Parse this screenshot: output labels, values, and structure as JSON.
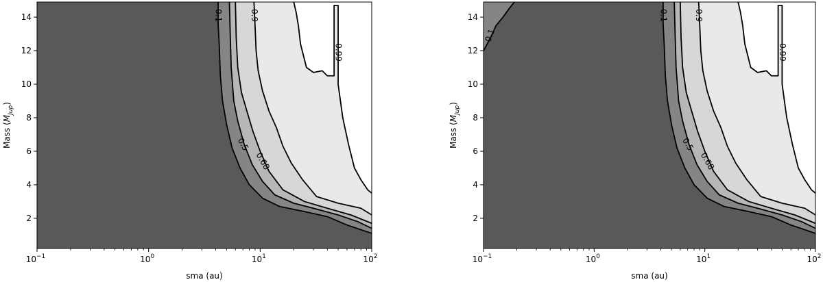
{
  "chart_data": [
    {
      "type": "contour",
      "xlabel": "sma (au)",
      "ylabel": "Mass (",
      "ylabel_math": "M",
      "ylabel_sub": "Jup",
      "ylabel_close": ")",
      "xscale": "log",
      "xlim": [
        0.1,
        100
      ],
      "ylim": [
        0.2,
        14.9
      ],
      "x_ticks": [
        {
          "base": "10",
          "exp": "−1"
        },
        {
          "base": "10",
          "exp": "0"
        },
        {
          "base": "10",
          "exp": "1"
        },
        {
          "base": "10",
          "exp": "2"
        }
      ],
      "y_ticks": [
        "2",
        "4",
        "6",
        "8",
        "10",
        "12",
        "14"
      ],
      "y_tick_values": [
        2,
        4,
        6,
        8,
        10,
        12,
        14
      ],
      "levels": [
        "0.1",
        "0.5",
        "0.68",
        "0.9",
        "0.99"
      ],
      "fill_colors": [
        "#595959",
        "#858585",
        "#b7b7b7",
        "#d7d7d7",
        "#e9e9e9",
        "#ffffff"
      ],
      "contours": [
        {
          "level": "0.1",
          "points": [
            [
              4.2,
              14.9
            ],
            [
              4.2,
              13.6
            ],
            [
              4.3,
              12.3
            ],
            [
              4.4,
              10.5
            ],
            [
              4.6,
              9.0
            ],
            [
              5.0,
              7.6
            ],
            [
              5.6,
              6.2
            ],
            [
              6.6,
              5.0
            ],
            [
              8.0,
              4.0
            ],
            [
              10.5,
              3.2
            ],
            [
              15,
              2.7
            ],
            [
              25,
              2.4
            ],
            [
              40,
              2.1
            ],
            [
              60,
              1.6
            ],
            [
              100,
              1.1
            ]
          ]
        },
        {
          "level": "0.5",
          "points": [
            [
              5.3,
              14.9
            ],
            [
              5.4,
              12.8
            ],
            [
              5.5,
              11.0
            ],
            [
              5.8,
              9.0
            ],
            [
              6.3,
              7.8
            ],
            [
              7.2,
              6.4
            ],
            [
              8.5,
              5.2
            ],
            [
              10.5,
              4.2
            ],
            [
              13.5,
              3.4
            ],
            [
              20,
              2.9
            ],
            [
              30,
              2.6
            ],
            [
              50,
              2.2
            ],
            [
              75,
              1.8
            ],
            [
              100,
              1.4
            ]
          ]
        },
        {
          "level": "0.68",
          "points": [
            [
              6.0,
              14.9
            ],
            [
              6.1,
              12.8
            ],
            [
              6.3,
              11.0
            ],
            [
              6.8,
              9.5
            ],
            [
              7.6,
              8.4
            ],
            [
              8.6,
              7.2
            ],
            [
              10.0,
              6.0
            ],
            [
              12.0,
              4.8
            ],
            [
              16,
              3.7
            ],
            [
              25,
              3.0
            ],
            [
              40,
              2.6
            ],
            [
              65,
              2.2
            ],
            [
              100,
              1.7
            ]
          ]
        },
        {
          "level": "0.9",
          "points": [
            [
              8.8,
              14.9
            ],
            [
              9.0,
              13.5
            ],
            [
              9.2,
              12.0
            ],
            [
              9.6,
              10.8
            ],
            [
              10.5,
              9.6
            ],
            [
              12.0,
              8.4
            ],
            [
              14,
              7.4
            ],
            [
              16,
              6.3
            ],
            [
              19,
              5.3
            ],
            [
              24,
              4.3
            ],
            [
              32,
              3.3
            ],
            [
              50,
              2.9
            ],
            [
              80,
              2.6
            ],
            [
              100,
              2.2
            ]
          ]
        },
        {
          "level": "0.99",
          "points": [
            [
              20,
              14.9
            ],
            [
              21,
              14.3
            ],
            [
              22,
              13.5
            ],
            [
              23,
              12.4
            ],
            [
              26,
              11.0
            ],
            [
              30,
              10.7
            ],
            [
              36,
              10.8
            ],
            [
              40,
              10.5
            ],
            [
              46,
              10.5
            ],
            [
              46,
              14.7
            ],
            [
              50,
              14.7
            ],
            [
              50,
              10.0
            ],
            [
              55,
              8.0
            ],
            [
              62,
              6.4
            ],
            [
              70,
              5.0
            ],
            [
              80,
              4.3
            ],
            [
              92,
              3.7
            ],
            [
              100,
              3.5
            ]
          ]
        }
      ],
      "label_positions": [
        {
          "text": "0.1",
          "x": 4.2,
          "y": 14.1
        },
        {
          "text": "0.9",
          "x": 8.8,
          "y": 14.1
        },
        {
          "text": "0.99",
          "x": 50,
          "y": 11.9
        },
        {
          "text": "0.5",
          "x": 7.0,
          "y": 6.4
        },
        {
          "text": "0.68",
          "x": 10.5,
          "y": 5.4
        }
      ]
    },
    {
      "type": "contour",
      "xlabel": "sma (au)",
      "ylabel": "Mass (",
      "ylabel_math": "M",
      "ylabel_sub": "Jup",
      "ylabel_close": ")",
      "xscale": "log",
      "xlim": [
        0.1,
        100
      ],
      "ylim": [
        0.2,
        14.9
      ],
      "x_ticks": [
        {
          "base": "10",
          "exp": "−1"
        },
        {
          "base": "10",
          "exp": "0"
        },
        {
          "base": "10",
          "exp": "1"
        },
        {
          "base": "10",
          "exp": "2"
        }
      ],
      "y_ticks": [
        "2",
        "4",
        "6",
        "8",
        "10",
        "12",
        "14"
      ],
      "y_tick_values": [
        2,
        4,
        6,
        8,
        10,
        12,
        14
      ],
      "levels": [
        "0.1",
        "0.5",
        "0.68",
        "0.9",
        "0.99"
      ],
      "fill_colors": [
        "#595959",
        "#858585",
        "#b7b7b7",
        "#d7d7d7",
        "#e9e9e9",
        "#ffffff"
      ],
      "corner_contour": {
        "level": "0.1",
        "points": [
          [
            0.1,
            12.0
          ],
          [
            0.11,
            12.5
          ],
          [
            0.12,
            13.0
          ],
          [
            0.13,
            13.5
          ],
          [
            0.15,
            14.0
          ],
          [
            0.17,
            14.5
          ],
          [
            0.19,
            14.9
          ]
        ]
      },
      "contours": [
        {
          "level": "0.1",
          "points": [
            [
              4.2,
              14.9
            ],
            [
              4.2,
              13.6
            ],
            [
              4.3,
              12.3
            ],
            [
              4.4,
              10.5
            ],
            [
              4.6,
              9.0
            ],
            [
              5.0,
              7.6
            ],
            [
              5.6,
              6.2
            ],
            [
              6.6,
              5.0
            ],
            [
              8.0,
              4.0
            ],
            [
              10.5,
              3.2
            ],
            [
              15,
              2.7
            ],
            [
              25,
              2.4
            ],
            [
              40,
              2.1
            ],
            [
              60,
              1.6
            ],
            [
              100,
              1.1
            ]
          ]
        },
        {
          "level": "0.5",
          "points": [
            [
              5.3,
              14.9
            ],
            [
              5.4,
              12.8
            ],
            [
              5.5,
              11.0
            ],
            [
              5.8,
              9.0
            ],
            [
              6.3,
              7.8
            ],
            [
              7.2,
              6.4
            ],
            [
              8.5,
              5.2
            ],
            [
              10.5,
              4.2
            ],
            [
              13.5,
              3.4
            ],
            [
              20,
              2.9
            ],
            [
              30,
              2.6
            ],
            [
              50,
              2.2
            ],
            [
              75,
              1.8
            ],
            [
              100,
              1.4
            ]
          ]
        },
        {
          "level": "0.68",
          "points": [
            [
              6.0,
              14.9
            ],
            [
              6.1,
              12.8
            ],
            [
              6.3,
              11.0
            ],
            [
              6.8,
              9.5
            ],
            [
              7.6,
              8.4
            ],
            [
              8.6,
              7.2
            ],
            [
              10.0,
              6.0
            ],
            [
              12.0,
              4.8
            ],
            [
              16,
              3.7
            ],
            [
              25,
              3.0
            ],
            [
              40,
              2.6
            ],
            [
              65,
              2.2
            ],
            [
              100,
              1.7
            ]
          ]
        },
        {
          "level": "0.9",
          "points": [
            [
              8.8,
              14.9
            ],
            [
              9.0,
              13.5
            ],
            [
              9.2,
              12.0
            ],
            [
              9.6,
              10.8
            ],
            [
              10.5,
              9.6
            ],
            [
              12.0,
              8.4
            ],
            [
              14,
              7.4
            ],
            [
              16,
              6.3
            ],
            [
              19,
              5.3
            ],
            [
              24,
              4.3
            ],
            [
              32,
              3.3
            ],
            [
              50,
              2.9
            ],
            [
              80,
              2.6
            ],
            [
              100,
              2.2
            ]
          ]
        },
        {
          "level": "0.99",
          "points": [
            [
              20,
              14.9
            ],
            [
              21,
              14.3
            ],
            [
              22,
              13.5
            ],
            [
              23,
              12.4
            ],
            [
              26,
              11.0
            ],
            [
              30,
              10.7
            ],
            [
              36,
              10.8
            ],
            [
              40,
              10.5
            ],
            [
              46,
              10.5
            ],
            [
              46,
              14.7
            ],
            [
              50,
              14.7
            ],
            [
              50,
              10.0
            ],
            [
              55,
              8.0
            ],
            [
              62,
              6.4
            ],
            [
              70,
              5.0
            ],
            [
              80,
              4.3
            ],
            [
              92,
              3.7
            ],
            [
              100,
              3.5
            ]
          ]
        }
      ],
      "label_positions": [
        {
          "text": "0.1",
          "x": 0.115,
          "y": 12.9
        },
        {
          "text": "0.1",
          "x": 4.2,
          "y": 14.1
        },
        {
          "text": "0.9",
          "x": 8.8,
          "y": 14.1
        },
        {
          "text": "0.99",
          "x": 50,
          "y": 11.9
        },
        {
          "text": "0.5",
          "x": 7.0,
          "y": 6.4
        },
        {
          "text": "0.68",
          "x": 10.5,
          "y": 5.4
        }
      ]
    }
  ]
}
